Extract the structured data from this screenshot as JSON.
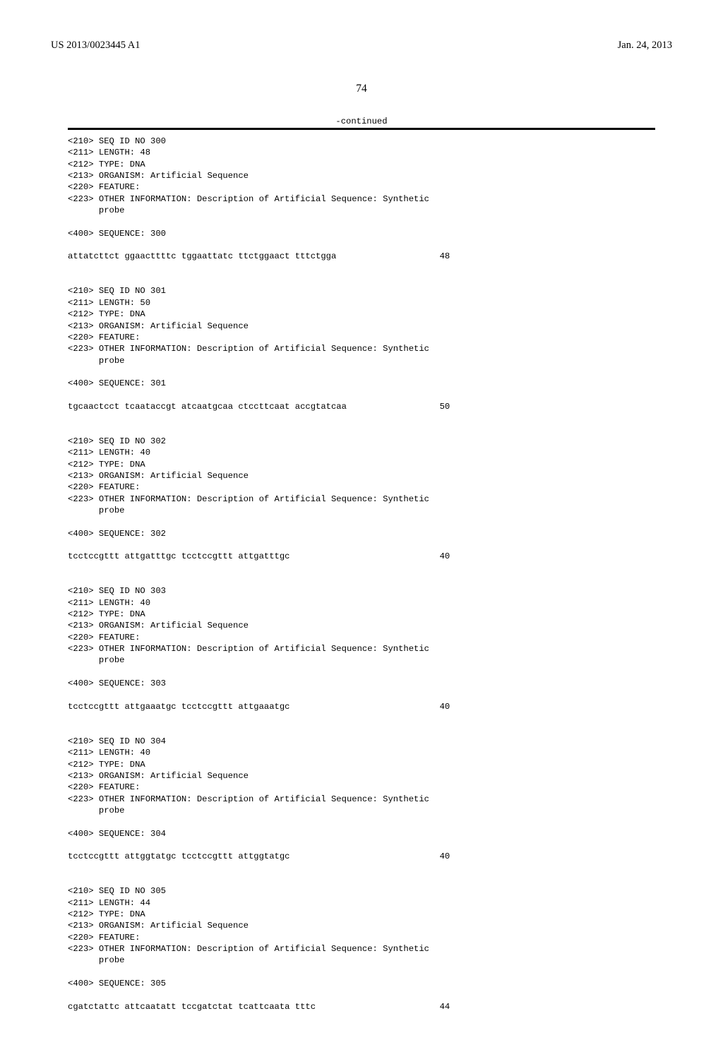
{
  "header": {
    "pub_number": "US 2013/0023445 A1",
    "pub_date": "Jan. 24, 2013"
  },
  "page_number": "74",
  "continued_label": "-continued",
  "entries": [
    {
      "meta": [
        "<210> SEQ ID NO 300",
        "<211> LENGTH: 48",
        "<212> TYPE: DNA",
        "<213> ORGANISM: Artificial Sequence",
        "<220> FEATURE:",
        "<223> OTHER INFORMATION: Description of Artificial Sequence: Synthetic",
        "      probe"
      ],
      "seq_header": "<400> SEQUENCE: 300",
      "sequence": "attatcttct ggaacttttc tggaattatc ttctggaact tttctgga",
      "length": "48"
    },
    {
      "meta": [
        "<210> SEQ ID NO 301",
        "<211> LENGTH: 50",
        "<212> TYPE: DNA",
        "<213> ORGANISM: Artificial Sequence",
        "<220> FEATURE:",
        "<223> OTHER INFORMATION: Description of Artificial Sequence: Synthetic",
        "      probe"
      ],
      "seq_header": "<400> SEQUENCE: 301",
      "sequence": "tgcaactcct tcaataccgt atcaatgcaa ctccttcaat accgtatcaa",
      "length": "50"
    },
    {
      "meta": [
        "<210> SEQ ID NO 302",
        "<211> LENGTH: 40",
        "<212> TYPE: DNA",
        "<213> ORGANISM: Artificial Sequence",
        "<220> FEATURE:",
        "<223> OTHER INFORMATION: Description of Artificial Sequence: Synthetic",
        "      probe"
      ],
      "seq_header": "<400> SEQUENCE: 302",
      "sequence": "tcctccgttt attgatttgc tcctccgttt attgatttgc",
      "length": "40"
    },
    {
      "meta": [
        "<210> SEQ ID NO 303",
        "<211> LENGTH: 40",
        "<212> TYPE: DNA",
        "<213> ORGANISM: Artificial Sequence",
        "<220> FEATURE:",
        "<223> OTHER INFORMATION: Description of Artificial Sequence: Synthetic",
        "      probe"
      ],
      "seq_header": "<400> SEQUENCE: 303",
      "sequence": "tcctccgttt attgaaatgc tcctccgttt attgaaatgc",
      "length": "40"
    },
    {
      "meta": [
        "<210> SEQ ID NO 304",
        "<211> LENGTH: 40",
        "<212> TYPE: DNA",
        "<213> ORGANISM: Artificial Sequence",
        "<220> FEATURE:",
        "<223> OTHER INFORMATION: Description of Artificial Sequence: Synthetic",
        "      probe"
      ],
      "seq_header": "<400> SEQUENCE: 304",
      "sequence": "tcctccgttt attggtatgc tcctccgttt attggtatgc",
      "length": "40"
    },
    {
      "meta": [
        "<210> SEQ ID NO 305",
        "<211> LENGTH: 44",
        "<212> TYPE: DNA",
        "<213> ORGANISM: Artificial Sequence",
        "<220> FEATURE:",
        "<223> OTHER INFORMATION: Description of Artificial Sequence: Synthetic",
        "      probe"
      ],
      "seq_header": "<400> SEQUENCE: 305",
      "sequence": "cgatctattc attcaatatt tccgatctat tcattcaata tttc",
      "length": "44"
    }
  ]
}
